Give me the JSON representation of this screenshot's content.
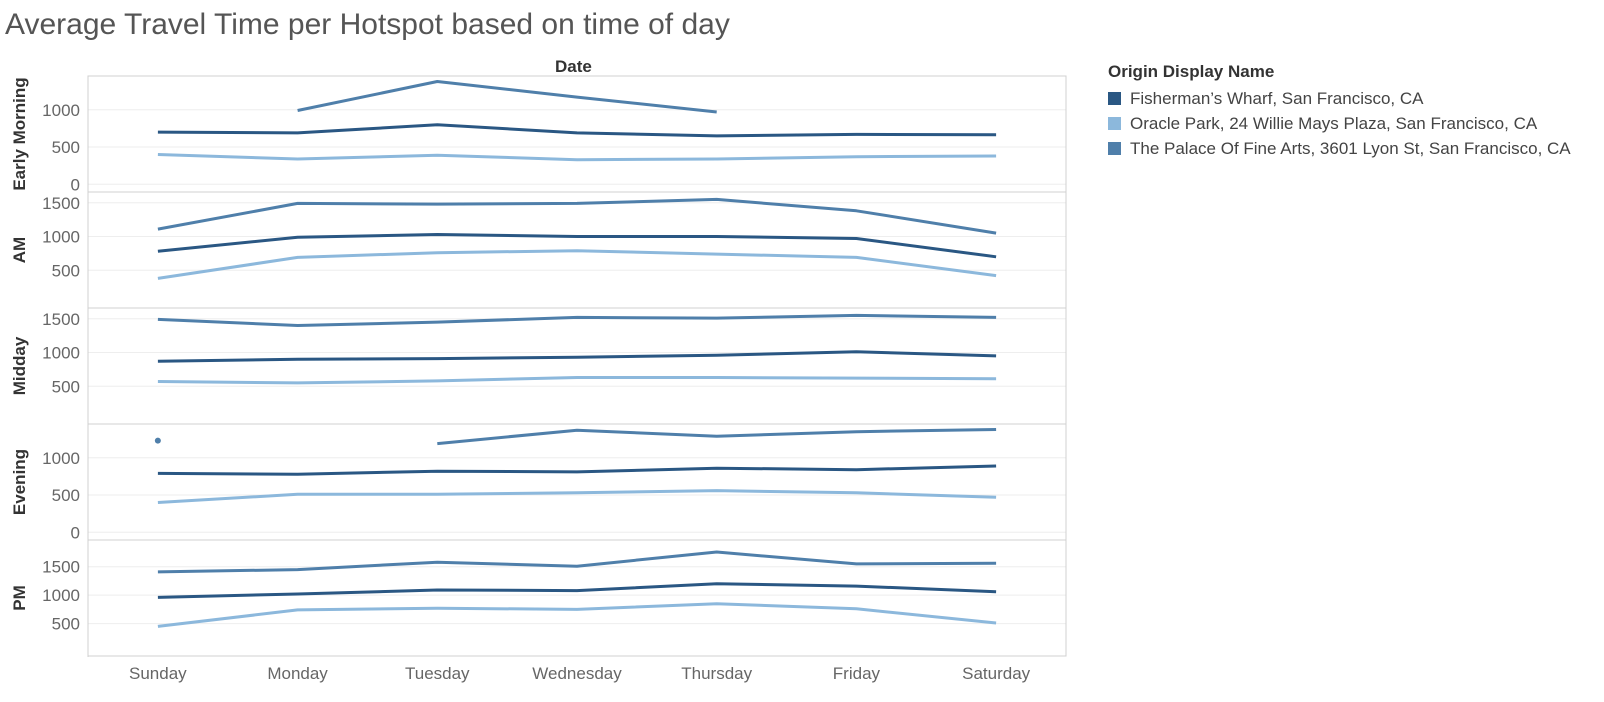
{
  "chart_data": {
    "type": "line",
    "title": "Average Travel Time per Hotspot based on time of day",
    "column_field": "Date",
    "categories": [
      "Sunday",
      "Monday",
      "Tuesday",
      "Wednesday",
      "Thursday",
      "Friday",
      "Saturday"
    ],
    "legend": {
      "title": "Origin Display Name",
      "placement": "right",
      "entries": [
        {
          "name": "Fisherman’s Wharf, San Francisco, CA",
          "color": "#2a5783"
        },
        {
          "name": "Oracle Park, 24 Willie Mays Plaza, San Francisco, CA",
          "color": "#8cb8dc"
        },
        {
          "name": "The Palace Of Fine Arts, 3601 Lyon St, San Francisco, CA",
          "color": "#4f7faa"
        }
      ]
    },
    "panels": [
      {
        "label": "Early Morning",
        "ylim": [
          -50,
          1400
        ],
        "yticks": [
          0,
          500,
          1000
        ],
        "series": [
          {
            "name": "Fisherman’s Wharf, San Francisco, CA",
            "values": [
              700,
              690,
              800,
              690,
              650,
              670,
              665
            ]
          },
          {
            "name": "Oracle Park, 24 Willie Mays Plaza, San Francisco, CA",
            "values": [
              400,
              340,
              390,
              330,
              340,
              370,
              380
            ]
          },
          {
            "name": "The Palace Of Fine Arts, 3601 Lyon St, San Francisco, CA",
            "values": [
              null,
              990,
              1380,
              1170,
              970,
              null,
              null
            ]
          }
        ]
      },
      {
        "label": "AM",
        "ylim": [
          0,
          1600
        ],
        "yticks": [
          500,
          1000,
          1500
        ],
        "series": [
          {
            "name": "Fisherman’s Wharf, San Francisco, CA",
            "values": [
              780,
              990,
              1030,
              1000,
              1000,
              970,
              700
            ]
          },
          {
            "name": "Oracle Park, 24 Willie Mays Plaza, San Francisco, CA",
            "values": [
              380,
              690,
              760,
              790,
              740,
              690,
              420
            ]
          },
          {
            "name": "The Palace Of Fine Arts, 3601 Lyon St, San Francisco, CA",
            "values": [
              1110,
              1490,
              1480,
              1490,
              1550,
              1380,
              1050
            ]
          }
        ]
      },
      {
        "label": "Midday",
        "ylim": [
          0,
          1600
        ],
        "yticks": [
          500,
          1000,
          1500
        ],
        "series": [
          {
            "name": "Fisherman’s Wharf, San Francisco, CA",
            "values": [
              870,
              900,
              910,
              930,
              960,
              1010,
              950
            ]
          },
          {
            "name": "Oracle Park, 24 Willie Mays Plaza, San Francisco, CA",
            "values": [
              570,
              550,
              580,
              630,
              630,
              620,
              610
            ]
          },
          {
            "name": "The Palace Of Fine Arts, 3601 Lyon St, San Francisco, CA",
            "values": [
              1490,
              1400,
              1450,
              1520,
              1510,
              1550,
              1520
            ]
          }
        ]
      },
      {
        "label": "Evening",
        "ylim": [
          -50,
          1400
        ],
        "yticks": [
          0,
          500,
          1000
        ],
        "series": [
          {
            "name": "Fisherman’s Wharf, San Francisco, CA",
            "values": [
              790,
              780,
              820,
              810,
              860,
              840,
              890
            ]
          },
          {
            "name": "Oracle Park, 24 Willie Mays Plaza, San Francisco, CA",
            "values": [
              400,
              510,
              510,
              530,
              560,
              530,
              470
            ]
          },
          {
            "name": "The Palace Of Fine Arts, 3601 Lyon St, San Francisco, CA",
            "values": [
              1230,
              null,
              1190,
              1370,
              1290,
              1350,
              1380
            ]
          }
        ]
      },
      {
        "label": "PM",
        "ylim": [
          0,
          1900
        ],
        "yticks": [
          500,
          1000,
          1500
        ],
        "series": [
          {
            "name": "Fisherman’s Wharf, San Francisco, CA",
            "values": [
              960,
              1020,
              1090,
              1080,
              1200,
              1160,
              1060
            ]
          },
          {
            "name": "Oracle Park, 24 Willie Mays Plaza, San Francisco, CA",
            "values": [
              450,
              740,
              770,
              750,
              850,
              760,
              510
            ]
          },
          {
            "name": "The Palace Of Fine Arts, 3601 Lyon St, San Francisco, CA",
            "values": [
              1410,
              1450,
              1580,
              1510,
              1760,
              1550,
              1560
            ]
          }
        ]
      }
    ]
  }
}
